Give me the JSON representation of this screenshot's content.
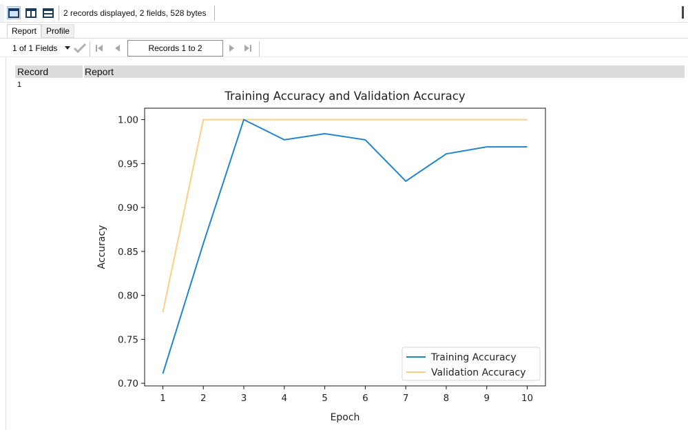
{
  "toolbar": {
    "status": "2 records displayed, 2 fields, 528 bytes",
    "views": [
      "single-view-icon",
      "split-columns-icon",
      "split-rows-icon"
    ]
  },
  "tabs": [
    {
      "label": "Report",
      "active": true
    },
    {
      "label": "Profile",
      "active": false
    }
  ],
  "nav": {
    "fields_select": "1 of 1 Fields",
    "records_range": "Records 1 to 2"
  },
  "grid": {
    "columns": [
      "Record",
      "Report"
    ],
    "rows": [
      {
        "record": "1"
      }
    ]
  },
  "colors": {
    "training": "#1f84d0",
    "validation": "#ffce85",
    "active_view": "#cfe3f5"
  },
  "chart_data": {
    "type": "line",
    "title": "Training Accuracy and Validation Accuracy",
    "xlabel": "Epoch",
    "ylabel": "Accuracy",
    "x": [
      1,
      2,
      3,
      4,
      5,
      6,
      7,
      8,
      9,
      10
    ],
    "xlim": [
      0.55,
      10.45
    ],
    "ylim": [
      0.697,
      1.013
    ],
    "yticks": [
      "0.70",
      "0.75",
      "0.80",
      "0.85",
      "0.90",
      "0.95",
      "1.00"
    ],
    "ytick_values": [
      0.7,
      0.75,
      0.8,
      0.85,
      0.9,
      0.95,
      1.0
    ],
    "xticks": [
      "1",
      "2",
      "3",
      "4",
      "5",
      "6",
      "7",
      "8",
      "9",
      "10"
    ],
    "grid": false,
    "legend_position": "lower-right",
    "series": [
      {
        "name": "Training Accuracy",
        "values": [
          0.711,
          0.859,
          1.0,
          0.977,
          0.984,
          0.977,
          0.93,
          0.961,
          0.969,
          0.969
        ]
      },
      {
        "name": "Validation Accuracy",
        "values": [
          0.781,
          1.0,
          1.0,
          1.0,
          1.0,
          1.0,
          1.0,
          1.0,
          1.0,
          1.0
        ]
      }
    ]
  }
}
